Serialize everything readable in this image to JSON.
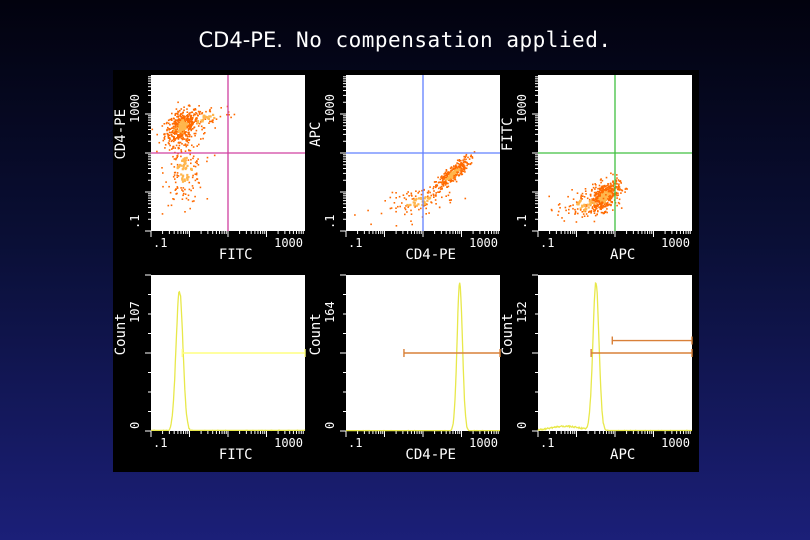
{
  "slide": {
    "title_main": "CD4-PE.",
    "title_rest": " No compensation applied."
  },
  "colors": {
    "panel_bg": "#ffffff",
    "frame": "#000000",
    "text": "#ffffff",
    "dots": "#ff6a00",
    "dots_dense": "#ffb64c",
    "histogram": "#e8e84a",
    "gate_fitc": "#ffff80",
    "gate_pe": "#d98038",
    "quad_fitc_pe": "#d040a0",
    "quad_pe_apc": "#6080ff",
    "quad_apc_fitc": "#40c040"
  },
  "chart_data": [
    {
      "type": "scatter",
      "scale": "log",
      "title": "",
      "xlabel": "FITC",
      "ylabel": "CD4-PE",
      "xlim": [
        0.1,
        1000
      ],
      "ylim": [
        0.1,
        1000
      ],
      "x_ticks": [
        ".1",
        "1000"
      ],
      "y_ticks": [
        ".1",
        "1000"
      ],
      "quadrant": {
        "x": 10,
        "y": 10,
        "color": "#d040a0"
      },
      "populations": [
        {
          "x": 0.6,
          "y": 50,
          "spread": [
            0.22,
            0.22
          ],
          "n": 420,
          "corr": 0.4
        },
        {
          "x": 0.7,
          "y": 4,
          "spread": [
            0.25,
            0.45
          ],
          "n": 170,
          "corr": 0.0
        },
        {
          "x": 2.5,
          "y": 80,
          "spread": [
            0.35,
            0.2
          ],
          "n": 70,
          "corr": 0.5
        }
      ]
    },
    {
      "type": "scatter",
      "scale": "log",
      "title": "",
      "xlabel": "CD4-PE",
      "ylabel": "APC",
      "xlim": [
        0.1,
        1000
      ],
      "ylim": [
        0.1,
        1000
      ],
      "x_ticks": [
        ".1",
        "1000"
      ],
      "y_ticks": [
        ".1",
        "1000"
      ],
      "quadrant": {
        "x": 10,
        "y": 10,
        "color": "#6080ff"
      },
      "populations": [
        {
          "x": 55,
          "y": 3,
          "spread": [
            0.22,
            0.2
          ],
          "n": 320,
          "corr": 0.85
        },
        {
          "x": 8,
          "y": 0.6,
          "spread": [
            0.45,
            0.2
          ],
          "n": 110,
          "corr": 0.5
        }
      ]
    },
    {
      "type": "scatter",
      "scale": "log",
      "title": "",
      "xlabel": "APC",
      "ylabel": "FITC",
      "xlim": [
        0.1,
        1000
      ],
      "ylim": [
        0.1,
        1000
      ],
      "x_ticks": [
        ".1",
        "1000"
      ],
      "y_ticks": [
        ".1",
        "1000"
      ],
      "quadrant": {
        "x": 10,
        "y": 10,
        "color": "#40c040"
      },
      "populations": [
        {
          "x": 5,
          "y": 0.8,
          "spread": [
            0.2,
            0.2
          ],
          "n": 420,
          "corr": 0.45
        },
        {
          "x": 1.5,
          "y": 0.5,
          "spread": [
            0.35,
            0.2
          ],
          "n": 110,
          "corr": 0.2
        }
      ]
    },
    {
      "type": "line",
      "subtype": "histogram",
      "title": "",
      "xlabel": "FITC",
      "ylabel": "Count",
      "xlim": [
        0.1,
        1000
      ],
      "ylim": [
        0,
        107
      ],
      "x_ticks": [
        ".1",
        "1000"
      ],
      "y_ticks": [
        "0",
        "107"
      ],
      "peaks": [
        {
          "x": 0.55,
          "height": 96,
          "width_decades": 0.09
        }
      ],
      "gates": [
        {
          "from": 0.65,
          "to": 1000,
          "level": 0.5,
          "color": "#ffff80"
        }
      ]
    },
    {
      "type": "line",
      "subtype": "histogram",
      "title": "",
      "xlabel": "CD4-PE",
      "ylabel": "Count",
      "xlim": [
        0.1,
        1000
      ],
      "ylim": [
        0,
        164
      ],
      "x_ticks": [
        ".1",
        "1000"
      ],
      "y_ticks": [
        "0",
        "164"
      ],
      "peaks": [
        {
          "x": 90,
          "height": 155,
          "width_decades": 0.07
        }
      ],
      "gates": [
        {
          "from": 3.2,
          "to": 1000,
          "level": 0.5,
          "color": "#d98038"
        }
      ]
    },
    {
      "type": "line",
      "subtype": "histogram",
      "title": "",
      "xlabel": "APC",
      "ylabel": "Count",
      "xlim": [
        0.1,
        1000
      ],
      "ylim": [
        0,
        132
      ],
      "x_ticks": [
        ".1",
        "1000"
      ],
      "y_ticks": [
        "0",
        "132"
      ],
      "peaks": [
        {
          "x": 3.2,
          "height": 125,
          "width_decades": 0.08
        },
        {
          "x": 0.5,
          "height": 4,
          "width_decades": 0.4
        }
      ],
      "gates": [
        {
          "from": 2.4,
          "to": 1000,
          "level": 0.5,
          "color": "#d98038"
        },
        {
          "from": 8.5,
          "to": 1000,
          "level": 0.42,
          "color": "#d98038"
        }
      ]
    }
  ]
}
